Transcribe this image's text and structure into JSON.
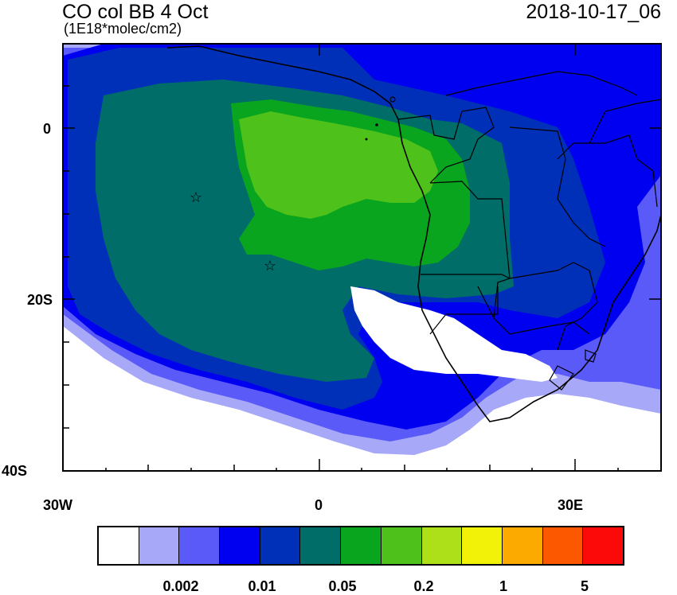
{
  "title": "CO col BB 4 Oct",
  "subtitle": "(1E18*molec/cm2)",
  "timestamp": "2018-10-17_06",
  "axes": {
    "y_labels": [
      "0",
      "20S",
      "40S"
    ],
    "x_labels": [
      "30W",
      "0",
      "30E"
    ]
  },
  "colorbar": {
    "colors": [
      "#ffffff",
      "#a8a8f8",
      "#5a5af8",
      "#0000f0",
      "#0030b8",
      "#006d68",
      "#0aa51e",
      "#4ec21a",
      "#aee01a",
      "#f2f208",
      "#fcaa00",
      "#fc5800",
      "#fc0a0a"
    ],
    "labels": [
      "0.002",
      "0.01",
      "0.05",
      "0.2",
      "1",
      "5"
    ]
  },
  "markers": {
    "star_symbol": "☆"
  }
}
